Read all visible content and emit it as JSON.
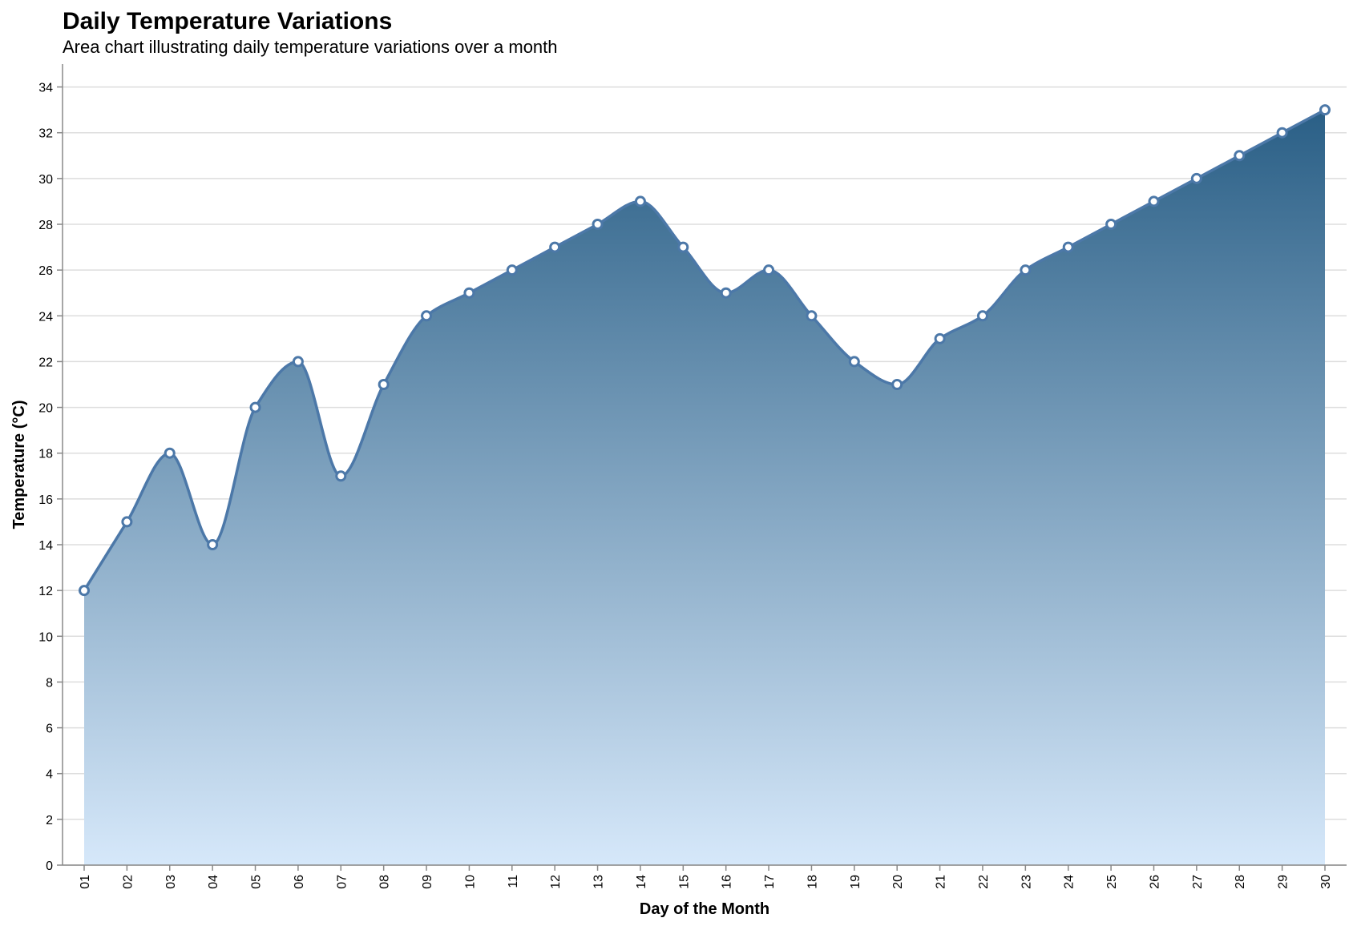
{
  "chart_data": {
    "type": "area",
    "title": "Daily Temperature Variations",
    "subtitle": "Area chart illustrating daily temperature variations over a month",
    "xlabel": "Day of the Month",
    "ylabel": "Temperature (°C)",
    "categories": [
      "01",
      "02",
      "03",
      "04",
      "05",
      "06",
      "07",
      "08",
      "09",
      "10",
      "11",
      "12",
      "13",
      "14",
      "15",
      "16",
      "17",
      "18",
      "19",
      "20",
      "21",
      "22",
      "23",
      "24",
      "25",
      "26",
      "27",
      "28",
      "29",
      "30"
    ],
    "values": [
      12,
      15,
      18,
      14,
      20,
      22,
      17,
      21,
      24,
      25,
      26,
      27,
      28,
      29,
      27,
      25,
      26,
      24,
      22,
      21,
      23,
      24,
      26,
      27,
      28,
      29,
      30,
      31,
      32,
      33
    ],
    "ylim": [
      0,
      35
    ],
    "yticks": [
      0,
      2,
      4,
      6,
      8,
      10,
      12,
      14,
      16,
      18,
      20,
      22,
      24,
      26,
      28,
      30,
      32,
      34
    ],
    "grid": true,
    "colors": {
      "line": "#4c78a8",
      "area_top": "#2a5f86",
      "area_bottom": "#d6e8fa",
      "point_fill": "#ffffff"
    }
  }
}
